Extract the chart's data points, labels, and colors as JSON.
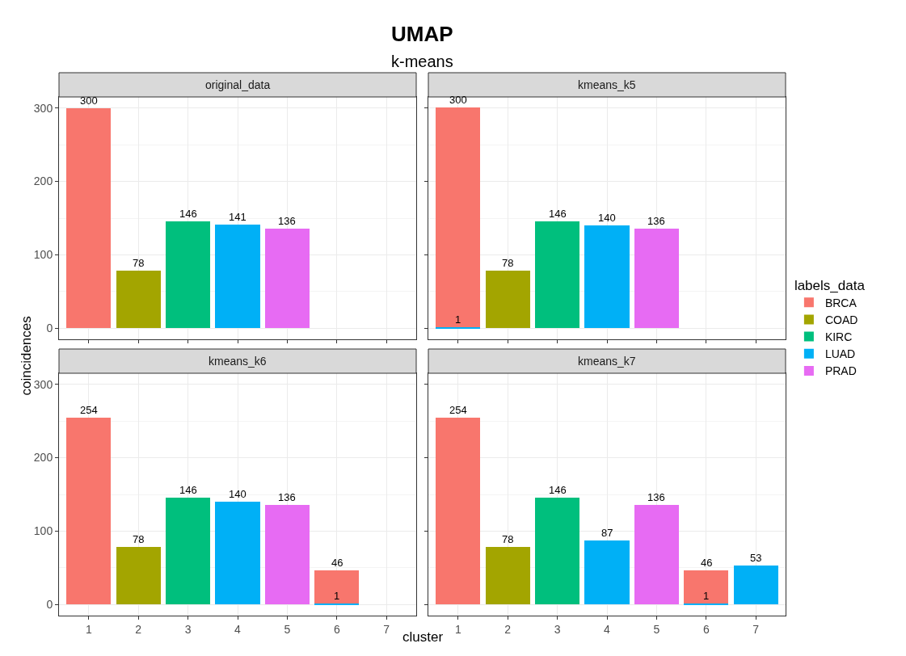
{
  "chart_data": [
    {
      "type": "bar",
      "title": "original_data",
      "stacked": true,
      "data_labels": true,
      "grid": true,
      "legend": "right",
      "legend_title": "labels_data",
      "tick_labels": "y",
      "ylabel": "coincidences",
      "annotations": [
        "UMAP",
        "k-means"
      ],
      "categories": [
        "1",
        "2",
        "3",
        "4",
        "5",
        "6",
        "7"
      ],
      "ylim": [
        -15,
        315
      ],
      "yticks": [
        0,
        100,
        200,
        300
      ],
      "series": [
        {
          "name": "PRAD",
          "color": "#e76bf3",
          "values": [
            null,
            null,
            null,
            null,
            136,
            null,
            null
          ]
        },
        {
          "name": "LUAD",
          "color": "#00b0f6",
          "values": [
            null,
            null,
            null,
            141,
            null,
            null,
            null
          ]
        },
        {
          "name": "KIRC",
          "color": "#00bf7d",
          "values": [
            null,
            null,
            146,
            null,
            null,
            null,
            null
          ]
        },
        {
          "name": "COAD",
          "color": "#a3a500",
          "values": [
            null,
            78,
            null,
            null,
            null,
            null,
            null
          ]
        },
        {
          "name": "BRCA",
          "color": "#f8766d",
          "values": [
            300,
            null,
            null,
            null,
            null,
            null,
            null
          ]
        }
      ]
    },
    {
      "type": "bar",
      "title": "kmeans_k5",
      "stacked": true,
      "data_labels": true,
      "grid": true,
      "tick_labels": false,
      "categories": [
        "1",
        "2",
        "3",
        "4",
        "5",
        "6",
        "7"
      ],
      "ylim": [
        -15,
        315
      ],
      "yticks": [
        0,
        100,
        200,
        300
      ],
      "series": [
        {
          "color": "#e76bf3",
          "values": [
            null,
            null,
            null,
            null,
            136,
            null,
            null
          ]
        },
        {
          "color": "#00b0f6",
          "values": [
            1,
            null,
            null,
            140,
            null,
            null,
            null
          ]
        },
        {
          "color": "#00bf7d",
          "values": [
            null,
            null,
            146,
            null,
            null,
            null,
            null
          ]
        },
        {
          "color": "#a3a500",
          "values": [
            null,
            78,
            null,
            null,
            null,
            null,
            null
          ]
        },
        {
          "color": "#f8766d",
          "values": [
            300,
            null,
            null,
            null,
            null,
            null,
            null
          ]
        }
      ]
    },
    {
      "type": "bar",
      "title": "kmeans_k6",
      "stacked": true,
      "data_labels": true,
      "grid": true,
      "xlabel": "cluster",
      "categories": [
        "1",
        "2",
        "3",
        "4",
        "5",
        "6",
        "7"
      ],
      "ylim": [
        -15,
        315
      ],
      "yticks": [
        0,
        100,
        200,
        300
      ],
      "series": [
        {
          "color": "#e76bf3",
          "values": [
            null,
            null,
            null,
            null,
            136,
            null,
            null
          ]
        },
        {
          "color": "#00b0f6",
          "values": [
            null,
            null,
            null,
            140,
            null,
            1,
            null
          ]
        },
        {
          "color": "#00bf7d",
          "values": [
            null,
            null,
            146,
            null,
            null,
            null,
            null
          ]
        },
        {
          "color": "#a3a500",
          "values": [
            null,
            78,
            null,
            null,
            null,
            null,
            null
          ]
        },
        {
          "color": "#f8766d",
          "values": [
            254,
            null,
            null,
            null,
            null,
            46,
            null
          ]
        }
      ]
    },
    {
      "type": "bar",
      "title": "kmeans_k7",
      "stacked": true,
      "data_labels": true,
      "grid": true,
      "tick_labels": "x",
      "categories": [
        "1",
        "2",
        "3",
        "4",
        "5",
        "6",
        "7"
      ],
      "ylim": [
        -15,
        315
      ],
      "yticks": [
        0,
        100,
        200,
        300
      ],
      "series": [
        {
          "color": "#e76bf3",
          "values": [
            null,
            null,
            null,
            null,
            136,
            null,
            null
          ]
        },
        {
          "color": "#00b0f6",
          "values": [
            null,
            null,
            null,
            87,
            null,
            1,
            53
          ]
        },
        {
          "color": "#00bf7d",
          "values": [
            null,
            null,
            146,
            null,
            null,
            null,
            null
          ]
        },
        {
          "color": "#a3a500",
          "values": [
            null,
            78,
            null,
            null,
            null,
            null,
            null
          ]
        },
        {
          "color": "#f8766d",
          "values": [
            254,
            null,
            null,
            null,
            null,
            46,
            null
          ]
        }
      ]
    }
  ]
}
